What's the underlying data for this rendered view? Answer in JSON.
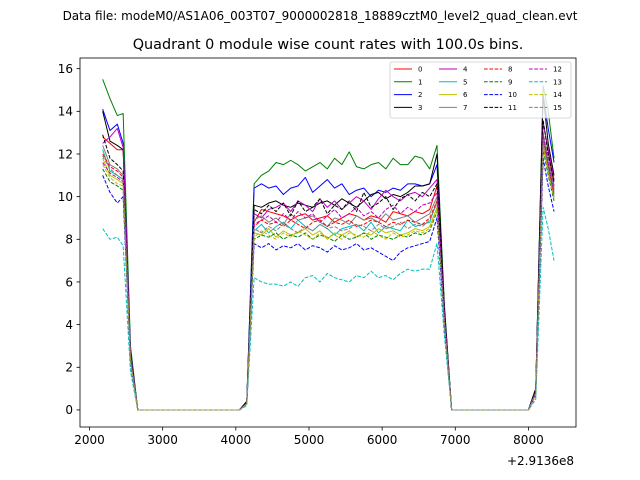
{
  "figure": {
    "suptitle": "Data file: modeM0/AS1A06_003T07_9000002818_18889cztM0_level2_quad_clean.evt",
    "title": "Quadrant 0 module wise count rates with 100.0s bins.",
    "x_offset_label": "+2.9136e8"
  },
  "chart_data": {
    "type": "line",
    "title": "Quadrant 0 module wise count rates with 100.0s bins.",
    "xlabel": "",
    "ylabel": "",
    "x_offset": "+2.9136e8",
    "xlim": [
      1870,
      8650
    ],
    "ylim": [
      -0.8,
      16.5
    ],
    "xticks": [
      2000,
      3000,
      4000,
      5000,
      6000,
      7000,
      8000
    ],
    "yticks": [
      0,
      2,
      4,
      6,
      8,
      10,
      12,
      14,
      16
    ],
    "grid": false,
    "legend_position": "top-right",
    "x": [
      2180,
      2280,
      2380,
      2460,
      2560,
      2660,
      3000,
      3500,
      4050,
      4150,
      4250,
      4350,
      4450,
      4550,
      4650,
      4750,
      4850,
      4950,
      5050,
      5150,
      5250,
      5350,
      5450,
      5550,
      5650,
      5750,
      5850,
      5950,
      6050,
      6150,
      6250,
      6350,
      6450,
      6550,
      6650,
      6750,
      6850,
      6950,
      7500,
      8000,
      8100,
      8200,
      8270,
      8350
    ],
    "series": [
      {
        "name": "0",
        "color": "#ff0000",
        "dash": false,
        "values": [
          12.8,
          12.5,
          12.2,
          12.2,
          2.5,
          0,
          0,
          0,
          0,
          0.3,
          8.8,
          9.4,
          9.3,
          9.2,
          9.1,
          8.9,
          9.1,
          9.2,
          8.9,
          9.0,
          9.1,
          8.8,
          9.0,
          9.2,
          9.1,
          8.9,
          9.1,
          9.0,
          8.8,
          9.3,
          9.2,
          9.1,
          9.3,
          9.2,
          9.4,
          10.5,
          4.5,
          0,
          0,
          0,
          0.8,
          12.0,
          12.2,
          10.5
        ]
      },
      {
        "name": "1",
        "color": "#008000",
        "dash": false,
        "values": [
          15.5,
          14.6,
          13.8,
          13.9,
          3.0,
          0,
          0,
          0,
          0,
          0.4,
          10.6,
          11.0,
          11.2,
          11.6,
          11.5,
          11.7,
          11.5,
          11.2,
          11.4,
          11.6,
          11.3,
          11.8,
          11.5,
          12.1,
          11.4,
          11.3,
          11.5,
          11.6,
          11.3,
          11.8,
          11.5,
          11.5,
          11.9,
          11.8,
          11.3,
          12.4,
          5.0,
          0,
          0,
          0,
          1.0,
          15.2,
          14.0,
          11.8
        ]
      },
      {
        "name": "2",
        "color": "#0000ff",
        "dash": false,
        "values": [
          14.1,
          13.1,
          13.4,
          12.5,
          2.8,
          0,
          0,
          0,
          0,
          0.4,
          10.4,
          10.6,
          10.4,
          10.5,
          10.1,
          10.4,
          10.5,
          10.9,
          10.2,
          10.5,
          10.8,
          10.4,
          10.6,
          10.1,
          10.3,
          10.4,
          10.0,
          10.3,
          10.2,
          10.4,
          10.3,
          10.6,
          10.6,
          10.5,
          10.6,
          11.5,
          4.8,
          0,
          0,
          0,
          1.0,
          14.8,
          13.2,
          11.6
        ]
      },
      {
        "name": "3",
        "color": "#000000",
        "dash": false,
        "values": [
          14.0,
          12.6,
          12.4,
          12.2,
          2.7,
          0,
          0,
          0,
          0,
          0.4,
          9.6,
          9.5,
          9.7,
          9.8,
          9.6,
          9.5,
          9.7,
          9.6,
          9.5,
          9.7,
          9.8,
          9.6,
          9.9,
          9.7,
          9.5,
          9.8,
          10.1,
          10.2,
          9.9,
          10.1,
          10.0,
          10.2,
          10.5,
          10.5,
          10.6,
          12.0,
          4.8,
          0,
          0,
          0,
          1.0,
          14.8,
          12.5,
          11.0
        ]
      },
      {
        "name": "4",
        "color": "#bf00bf",
        "dash": false,
        "values": [
          12.5,
          12.8,
          13.2,
          12.3,
          2.6,
          0,
          0,
          0,
          0,
          0.3,
          9.2,
          9.0,
          9.4,
          9.5,
          9.7,
          9.3,
          9.8,
          9.6,
          9.3,
          9.9,
          9.5,
          9.8,
          9.4,
          9.7,
          10.0,
          9.8,
          9.4,
          9.9,
          10.3,
          10.0,
          9.8,
          10.1,
          10.2,
          10.0,
          10.4,
          10.8,
          4.6,
          0,
          0,
          0,
          0.9,
          13.5,
          12.2,
          10.8
        ]
      },
      {
        "name": "5",
        "color": "#00bfbf",
        "dash": false,
        "values": [
          12.2,
          11.2,
          11.0,
          10.8,
          2.4,
          0,
          0,
          0,
          0,
          0.3,
          8.4,
          8.7,
          8.3,
          8.6,
          8.8,
          8.5,
          8.9,
          8.6,
          8.4,
          8.7,
          8.5,
          8.2,
          8.5,
          8.6,
          8.7,
          8.4,
          8.8,
          8.3,
          8.6,
          8.5,
          8.4,
          8.9,
          8.6,
          8.7,
          8.8,
          9.8,
          4.3,
          0,
          0,
          0,
          0.8,
          12.8,
          11.5,
          10.2
        ]
      },
      {
        "name": "6",
        "color": "#bfbf00",
        "dash": false,
        "values": [
          11.8,
          11.0,
          10.8,
          10.6,
          2.3,
          0,
          0,
          0,
          0,
          0.3,
          8.3,
          8.2,
          8.5,
          8.1,
          8.4,
          8.2,
          8.3,
          8.5,
          8.2,
          8.4,
          8.0,
          8.3,
          8.2,
          8.4,
          8.1,
          8.3,
          8.2,
          8.5,
          8.3,
          8.4,
          8.2,
          8.3,
          8.5,
          8.4,
          8.6,
          9.5,
          4.2,
          0,
          0,
          0,
          0.8,
          12.5,
          11.2,
          10.0
        ]
      },
      {
        "name": "7",
        "color": "#808080",
        "dash": false,
        "values": [
          12.4,
          11.5,
          11.3,
          11.0,
          2.5,
          0,
          0,
          0,
          0,
          0.3,
          8.9,
          9.1,
          8.8,
          9.0,
          8.7,
          9.2,
          8.9,
          9.0,
          9.1,
          8.8,
          8.6,
          9.0,
          8.9,
          8.7,
          9.1,
          8.9,
          9.0,
          8.8,
          9.2,
          8.9,
          9.0,
          9.1,
          8.8,
          9.0,
          9.2,
          10.0,
          4.4,
          0,
          0,
          0,
          0.8,
          13.0,
          11.8,
          10.4
        ]
      },
      {
        "name": "8",
        "color": "#ff0000",
        "dash": true,
        "values": [
          12.0,
          11.4,
          11.2,
          10.9,
          2.4,
          0,
          0,
          0,
          0,
          0.3,
          8.6,
          8.9,
          8.7,
          8.8,
          8.6,
          8.9,
          8.7,
          8.5,
          8.8,
          8.9,
          8.6,
          8.8,
          8.7,
          8.9,
          8.6,
          8.7,
          8.9,
          8.8,
          8.6,
          8.8,
          8.7,
          8.9,
          8.8,
          8.7,
          9.0,
          9.8,
          4.3,
          0,
          0,
          0,
          0.8,
          12.6,
          11.4,
          10.1
        ]
      },
      {
        "name": "9",
        "color": "#008000",
        "dash": true,
        "values": [
          11.3,
          10.7,
          10.5,
          10.3,
          2.3,
          0,
          0,
          0,
          0,
          0.3,
          8.0,
          8.2,
          8.1,
          8.3,
          8.0,
          8.2,
          8.1,
          8.3,
          8.0,
          8.2,
          8.1,
          7.9,
          8.2,
          8.0,
          8.1,
          8.3,
          8.0,
          8.2,
          8.1,
          8.0,
          8.2,
          8.1,
          8.3,
          8.2,
          8.4,
          9.3,
          4.1,
          0,
          0,
          0,
          0.7,
          12.2,
          11.0,
          9.8
        ]
      },
      {
        "name": "10",
        "color": "#0000ff",
        "dash": true,
        "values": [
          11.0,
          10.2,
          9.7,
          10.0,
          2.2,
          0,
          0,
          0,
          0,
          0.3,
          7.8,
          7.6,
          7.8,
          7.5,
          7.7,
          7.6,
          7.8,
          7.5,
          7.7,
          7.6,
          7.4,
          7.7,
          7.5,
          7.6,
          7.8,
          7.5,
          7.6,
          7.4,
          7.2,
          7.0,
          7.4,
          7.6,
          7.7,
          7.8,
          7.9,
          9.0,
          4.0,
          0,
          0,
          0,
          0.7,
          11.8,
          10.5,
          9.3
        ]
      },
      {
        "name": "11",
        "color": "#000000",
        "dash": true,
        "values": [
          12.9,
          11.8,
          11.5,
          11.2,
          2.5,
          0,
          0,
          0,
          0,
          0.4,
          9.4,
          9.2,
          9.6,
          9.3,
          9.7,
          9.1,
          9.8,
          9.3,
          9.5,
          9.9,
          9.2,
          9.6,
          9.4,
          9.8,
          9.3,
          10.2,
          9.5,
          9.7,
          10.0,
          9.4,
          9.9,
          10.1,
          9.8,
          10.2,
          10.0,
          10.6,
          4.6,
          0,
          0,
          0,
          0.9,
          13.6,
          12.0,
          10.7
        ]
      },
      {
        "name": "12",
        "color": "#bf00bf",
        "dash": true,
        "values": [
          11.6,
          11.1,
          10.9,
          10.7,
          2.4,
          0,
          0,
          0,
          0,
          0.3,
          8.7,
          8.9,
          9.1,
          8.8,
          9.2,
          8.9,
          9.3,
          9.0,
          9.2,
          8.8,
          9.1,
          9.4,
          9.0,
          9.2,
          9.5,
          9.1,
          9.3,
          9.0,
          9.4,
          9.6,
          9.2,
          9.5,
          9.3,
          9.6,
          9.7,
          10.2,
          4.4,
          0,
          0,
          0,
          0.8,
          12.9,
          11.6,
          10.3
        ]
      },
      {
        "name": "13",
        "color": "#00bfbf",
        "dash": true,
        "values": [
          8.5,
          8.0,
          8.1,
          7.7,
          1.8,
          0,
          0,
          0,
          0,
          0.2,
          6.2,
          6.0,
          5.9,
          5.9,
          5.8,
          6.0,
          5.8,
          6.2,
          6.3,
          6.0,
          6.4,
          6.2,
          6.1,
          6.0,
          6.3,
          6.2,
          6.5,
          6.2,
          6.3,
          6.1,
          6.4,
          6.6,
          6.5,
          6.6,
          6.6,
          7.8,
          3.5,
          0,
          0,
          0,
          0.5,
          9.5,
          8.5,
          7.0
        ]
      },
      {
        "name": "14",
        "color": "#bfbf00",
        "dash": true,
        "values": [
          11.5,
          10.9,
          10.6,
          10.5,
          2.3,
          0,
          0,
          0,
          0,
          0.3,
          8.1,
          8.4,
          8.2,
          8.0,
          8.3,
          8.1,
          8.4,
          8.2,
          8.0,
          8.3,
          8.1,
          8.2,
          8.0,
          8.3,
          8.2,
          8.1,
          8.4,
          8.2,
          8.0,
          8.3,
          8.1,
          8.2,
          8.4,
          8.3,
          8.5,
          9.4,
          4.1,
          0,
          0,
          0,
          0.7,
          12.4,
          11.1,
          9.9
        ]
      },
      {
        "name": "15",
        "color": "#808080",
        "dash": true,
        "values": [
          11.9,
          11.3,
          11.0,
          10.8,
          2.4,
          0,
          0,
          0,
          0,
          0.3,
          8.5,
          8.3,
          8.6,
          8.4,
          8.7,
          8.5,
          8.3,
          8.6,
          8.4,
          8.7,
          8.5,
          8.6,
          8.4,
          8.5,
          8.7,
          8.6,
          8.4,
          8.7,
          8.5,
          8.6,
          8.8,
          8.5,
          8.7,
          8.6,
          8.9,
          9.7,
          4.2,
          0,
          0,
          0,
          0.8,
          12.7,
          11.3,
          10.0
        ]
      }
    ]
  }
}
